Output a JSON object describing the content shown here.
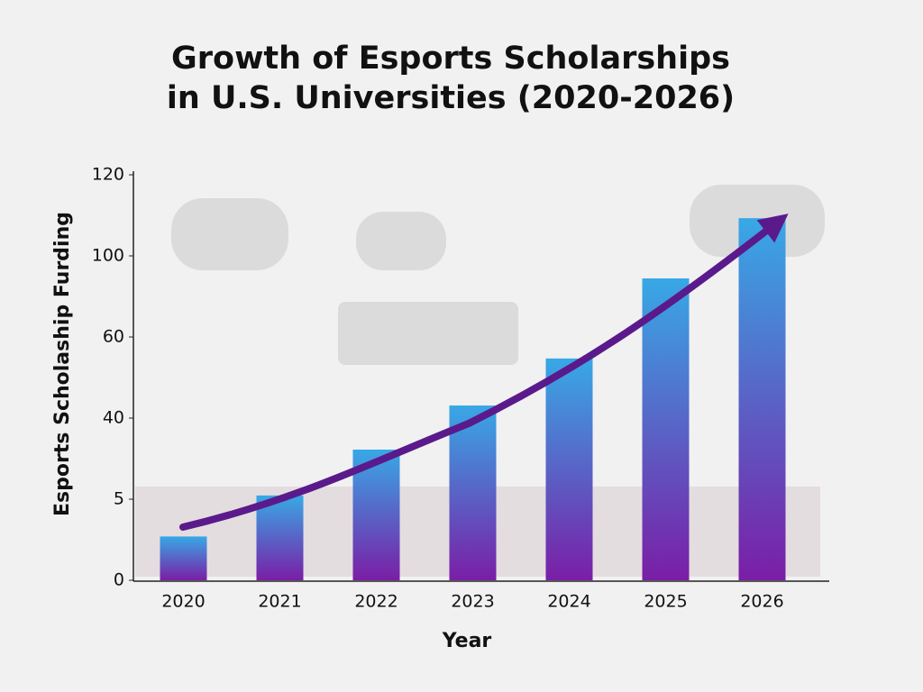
{
  "chart_data": {
    "type": "bar",
    "title": [
      "Growth of Esports Scholarships",
      "in U.S. Universities (2020-2026)"
    ],
    "x_label": "Year",
    "y_label": "Esports Scholaship Furding",
    "categories": [
      "2020",
      "2021",
      "2022",
      "2023",
      "2024",
      "2025",
      "2026"
    ],
    "values": [
      2.7,
      6.6,
      26.4,
      43.1,
      54.7,
      88.9,
      109.3
    ],
    "colors": [
      "#38a8e6",
      "#7a1ea6"
    ],
    "ylim": [
      0,
      120
    ],
    "yticks": [
      0,
      5,
      40,
      60,
      100,
      120
    ]
  }
}
